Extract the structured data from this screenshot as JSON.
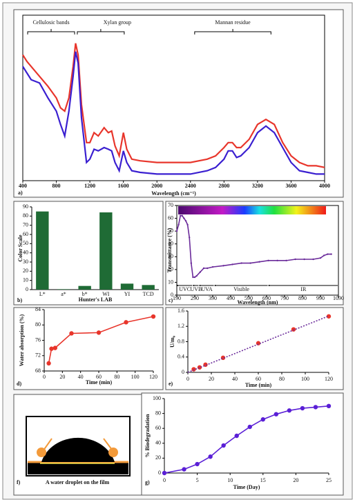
{
  "chart_data": [
    {
      "type": "line",
      "panel_label": "a)",
      "x_label": "Wavelength (cm⁻¹)",
      "annotations": [
        "Cellulosic bands",
        "Xylan group",
        "Mannan residue"
      ],
      "x": [
        400,
        450,
        500,
        600,
        700,
        800,
        850,
        900,
        950,
        1000,
        1030,
        1060,
        1100,
        1160,
        1200,
        1250,
        1300,
        1370,
        1420,
        1460,
        1500,
        1550,
        1600,
        1640,
        1700,
        1800,
        2000,
        2200,
        2400,
        2600,
        2700,
        2800,
        2850,
        2900,
        2950,
        3000,
        3100,
        3200,
        3300,
        3400,
        3500,
        3600,
        3700,
        3800,
        3900,
        4000
      ],
      "series": [
        {
          "color": "#e8352b",
          "values": [
            76,
            72,
            69,
            63,
            57,
            50,
            44,
            42,
            50,
            69,
            83,
            76,
            46,
            23,
            23,
            29,
            27,
            32,
            29,
            30,
            21,
            15,
            29,
            19,
            13,
            12,
            11,
            11,
            11,
            13,
            15,
            20,
            23,
            23,
            20,
            20,
            25,
            34,
            37,
            34,
            23,
            15,
            11,
            9,
            9,
            8
          ]
        },
        {
          "color": "#3a1fd0",
          "values": [
            69,
            65,
            61,
            59,
            50,
            42,
            34,
            27,
            42,
            63,
            78,
            71,
            38,
            11,
            13,
            19,
            18,
            20,
            19,
            18,
            11,
            6,
            18,
            11,
            6,
            5,
            4,
            4,
            4,
            6,
            8,
            13,
            18,
            18,
            14,
            15,
            20,
            29,
            33,
            29,
            20,
            11,
            6,
            5,
            4,
            4
          ]
        }
      ],
      "xlim": [
        400,
        4000
      ],
      "xticks": [
        400,
        800,
        1200,
        1600,
        2000,
        2400,
        2800,
        3200,
        3600,
        4000
      ],
      "ylim": [
        0,
        100
      ]
    },
    {
      "type": "bar",
      "panel_label": "b)",
      "x_label": "Hunter's LAB",
      "y_label": "Color Scale",
      "categories": [
        "L*",
        "a*",
        "b*",
        "WI",
        "YI",
        "TCD"
      ],
      "values": [
        85,
        0.5,
        4,
        84,
        6.5,
        5
      ],
      "color": "#1f6b35",
      "ylim": [
        0,
        90
      ],
      "yticks": [
        0,
        10,
        20,
        30,
        40,
        50,
        60,
        70,
        80,
        90
      ]
    },
    {
      "type": "line",
      "panel_label": "c)",
      "x_label": "Wavelength (nm)",
      "y_label": "Transmittance (%)",
      "annotations": [
        "UVC",
        "UVB",
        "UVA",
        "Visible",
        "IR"
      ],
      "x": [
        190,
        200,
        210,
        220,
        230,
        240,
        250,
        260,
        270,
        280,
        290,
        300,
        320,
        340,
        360,
        390,
        450,
        500,
        550,
        600,
        650,
        700,
        750,
        800,
        850,
        900,
        950,
        990,
        1010,
        1030,
        1050
      ],
      "series": [
        {
          "color": "#6a2a9a",
          "marker": "small",
          "values": [
            50,
            55,
            62,
            62,
            60,
            58,
            55,
            45,
            25,
            14,
            14,
            15,
            18,
            21,
            21,
            22,
            23,
            24,
            25,
            25,
            26,
            27,
            27,
            27,
            28,
            28,
            28,
            29,
            31,
            32,
            32
          ]
        }
      ],
      "xlim": [
        190,
        1090
      ],
      "xticks": [
        190,
        290,
        390,
        490,
        590,
        690,
        790,
        890,
        990,
        1090
      ],
      "ylim": [
        0,
        70
      ],
      "yticks": [
        0,
        10,
        20,
        30,
        40,
        50,
        60,
        70
      ]
    },
    {
      "type": "line",
      "panel_label": "d)",
      "x_label": "Time (min)",
      "y_label": "Water absorption (%)",
      "x": [
        5,
        8,
        12,
        30,
        60,
        90,
        120
      ],
      "series": [
        {
          "color": "#e8352b",
          "marker": "dot",
          "values": [
            70,
            73.8,
            74,
            77.8,
            78,
            80.7,
            82.2
          ]
        }
      ],
      "xlim": [
        0,
        120
      ],
      "xticks": [
        0,
        20,
        40,
        60,
        80,
        100,
        120
      ],
      "ylim": [
        68,
        84
      ],
      "yticks": [
        68,
        72,
        76,
        80,
        84
      ]
    },
    {
      "type": "line",
      "panel_label": "e)",
      "x_label": "Time (min)",
      "y_label": "U/m₀",
      "x": [
        5,
        10,
        15,
        30,
        60,
        90,
        120
      ],
      "series": [
        {
          "color": "#e8352b",
          "marker": "dot",
          "line": false,
          "values": [
            0.08,
            0.13,
            0.2,
            0.38,
            0.76,
            1.12,
            1.46
          ]
        },
        {
          "color": "#6a2a9a",
          "line_style": "dotted",
          "x": [
            0,
            120
          ],
          "values": [
            0,
            1.47
          ]
        }
      ],
      "xlim": [
        0,
        120
      ],
      "xticks": [
        0,
        20,
        40,
        60,
        80,
        100,
        120
      ],
      "ylim": [
        0,
        1.6
      ],
      "yticks": [
        0,
        0.4,
        0.8,
        1.2,
        1.6
      ]
    },
    {
      "type": "image",
      "panel_label": "f)",
      "caption": "A water droplet on the film"
    },
    {
      "type": "line",
      "panel_label": "g)",
      "x_label": "Time (Day)",
      "y_label": "% Biodegradation",
      "x": [
        0,
        3,
        5,
        7,
        9,
        11,
        13,
        15,
        17,
        19,
        21,
        23,
        25
      ],
      "series": [
        {
          "color": "#5a1fd6",
          "marker": "dot",
          "values": [
            0,
            5,
            12,
            22,
            37,
            50,
            62,
            72,
            79,
            84,
            87,
            88.5,
            90
          ]
        }
      ],
      "xlim": [
        0,
        25
      ],
      "xticks": [
        0,
        5,
        10,
        15,
        20,
        25
      ],
      "ylim": [
        0,
        100
      ],
      "yticks": [
        0,
        20,
        40,
        60,
        80,
        100
      ]
    }
  ]
}
